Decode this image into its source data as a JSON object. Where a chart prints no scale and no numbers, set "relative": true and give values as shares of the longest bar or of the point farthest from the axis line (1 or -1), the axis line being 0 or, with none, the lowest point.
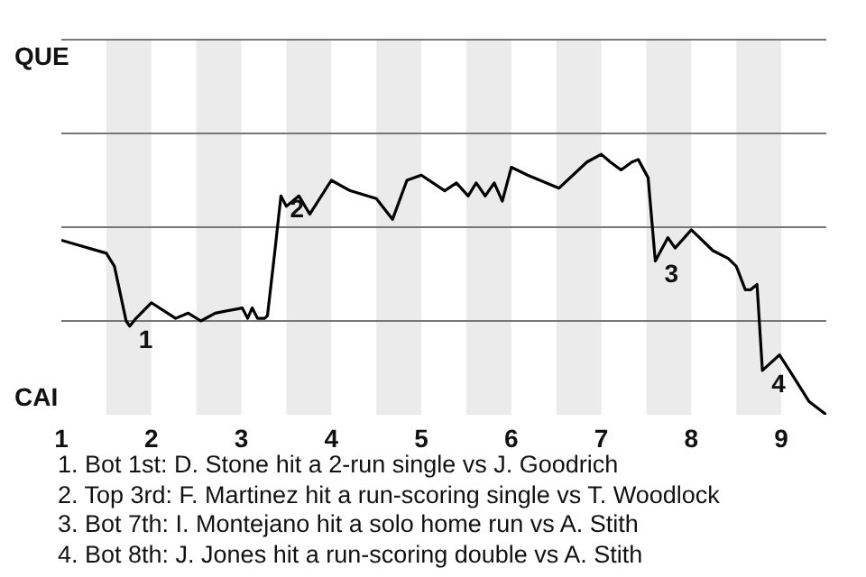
{
  "chart_data": {
    "type": "line",
    "relative": true,
    "x": [
      1,
      1.5,
      1.59,
      1.72,
      1.76,
      1.83,
      2,
      2.27,
      2.41,
      2.55,
      2.71,
      3.01,
      3.07,
      3.12,
      3.18,
      3.26,
      3.29,
      3.37,
      3.44,
      3.5,
      3.64,
      3.76,
      4,
      4.21,
      4.5,
      4.68,
      4.84,
      5,
      5.26,
      5.39,
      5.52,
      5.61,
      5.71,
      5.81,
      5.9,
      6,
      6.18,
      6.53,
      6.84,
      7,
      7.1,
      7.22,
      7.34,
      7.41,
      7.52,
      7.6,
      7.74,
      7.82,
      8,
      8.24,
      8.41,
      8.5,
      8.6,
      8.66,
      8.73,
      8.79,
      8.98,
      9.11,
      9.31,
      9.5
    ],
    "values": [
      0.67,
      0.62,
      0.57,
      0.36,
      0.34,
      0.37,
      0.43,
      0.37,
      0.39,
      0.36,
      0.39,
      0.41,
      0.37,
      0.41,
      0.37,
      0.37,
      0.38,
      0.62,
      0.84,
      0.8,
      0.84,
      0.77,
      0.9,
      0.86,
      0.83,
      0.75,
      0.9,
      0.92,
      0.86,
      0.89,
      0.84,
      0.89,
      0.84,
      0.89,
      0.82,
      0.95,
      0.92,
      0.87,
      0.97,
      1,
      0.97,
      0.94,
      0.97,
      0.98,
      0.91,
      0.59,
      0.68,
      0.64,
      0.71,
      0.63,
      0.6,
      0.57,
      0.48,
      0.48,
      0.5,
      0.17,
      0.23,
      0.16,
      0.05,
      0
    ],
    "color": "#000000",
    "marker": "none",
    "line_style": "solid",
    "xlim": [
      1,
      9.5
    ],
    "xticks": [
      1,
      2,
      3,
      4,
      5,
      6,
      7,
      8,
      9
    ],
    "ref_lines": [
      {
        "axis": "y",
        "value": 0.36,
        "color": "#777777"
      },
      {
        "axis": "y",
        "value": 0.72,
        "color": "#777777"
      },
      {
        "axis": "y",
        "value": 1.08,
        "color": "#777777"
      },
      {
        "axis": "y",
        "value": 1.44,
        "color": "#777777"
      }
    ],
    "bands": [
      {
        "axis": "x",
        "from": 1.5,
        "to": 2,
        "color": "#ebebeb"
      },
      {
        "axis": "x",
        "from": 2.5,
        "to": 3,
        "color": "#ebebeb"
      },
      {
        "axis": "x",
        "from": 3.5,
        "to": 4,
        "color": "#ebebeb"
      },
      {
        "axis": "x",
        "from": 4.5,
        "to": 5,
        "color": "#ebebeb"
      },
      {
        "axis": "x",
        "from": 5.5,
        "to": 6,
        "color": "#ebebeb"
      },
      {
        "axis": "x",
        "from": 6.5,
        "to": 7,
        "color": "#ebebeb"
      },
      {
        "axis": "x",
        "from": 7.5,
        "to": 8,
        "color": "#ebebeb"
      },
      {
        "axis": "x",
        "from": 8.5,
        "to": 9,
        "color": "#ebebeb"
      }
    ],
    "annotations": [
      {
        "text": "1",
        "x": 1.76,
        "y": 0.34
      },
      {
        "text": "2",
        "x": 3.44,
        "y": 0.84
      },
      {
        "text": "3",
        "x": 7.6,
        "y": 0.59
      },
      {
        "text": "4",
        "x": 8.79,
        "y": 0.17
      },
      "QUE",
      "CAI",
      "1. Bot 1st: D. Stone hit a 2-run single vs J. Goodrich",
      "2. Top 3rd: F. Martinez hit a run-scoring single vs T. Woodlock",
      "3. Bot 7th: I. Montejano hit a solo home run vs A. Stith",
      "4. Bot 8th: J. Jones hit a run-scoring double vs A. Stith"
    ]
  }
}
